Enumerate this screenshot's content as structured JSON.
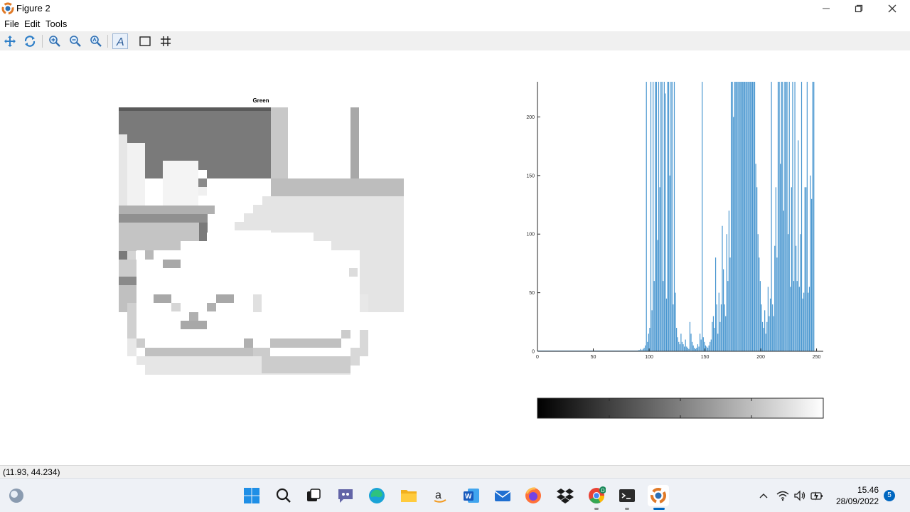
{
  "window": {
    "title": "Figure 2"
  },
  "menu": {
    "file": "File",
    "edit": "Edit",
    "tools": "Tools"
  },
  "toolbar_icons": [
    "pan-icon",
    "rotate-icon",
    "zoom-in-icon",
    "zoom-out-icon",
    "zoom-reset-icon",
    "text-icon",
    "axes-box-icon",
    "grid-icon"
  ],
  "image_panel": {
    "title": "Green"
  },
  "status": {
    "coordinates": "(11.93, 44.234)"
  },
  "clock": {
    "time": "15.46",
    "date": "28/09/2022"
  },
  "notifications": {
    "count": "5"
  },
  "taskbar_apps": [
    "start",
    "search",
    "task-view",
    "teams-chat",
    "edge",
    "file-explorer",
    "amazon",
    "word",
    "mail",
    "firefox",
    "dropbox",
    "chrome",
    "terminal",
    "octave"
  ],
  "colors": {
    "bar": "#4a97d0",
    "toolbar_bg": "#f0f0f0",
    "taskbar_bg": "#eef1f6",
    "accent": "#0067c0"
  },
  "chart_data": {
    "type": "bar",
    "title": "",
    "xlabel": "",
    "ylabel": "",
    "xlim": [
      0,
      256
    ],
    "ylim": [
      0,
      230
    ],
    "xticks": [
      "0",
      "50",
      "100",
      "150",
      "200",
      "250"
    ],
    "yticks": [
      "0",
      "50",
      "100",
      "150",
      "200"
    ],
    "series": [
      {
        "start_x": 90,
        "values": [
          1,
          1,
          2,
          1,
          2,
          3,
          5,
          230,
          8,
          15,
          20,
          230,
          35,
          230,
          60,
          230,
          230,
          95,
          230,
          140,
          230,
          230,
          60,
          230,
          220,
          45,
          230,
          230,
          150,
          230,
          230,
          40,
          230,
          50,
          20,
          12,
          8,
          6,
          15,
          8,
          6,
          4,
          10,
          4,
          3,
          2,
          25,
          15,
          8,
          5,
          3,
          2,
          3,
          6,
          4,
          15,
          10,
          230,
          12,
          8,
          5,
          4,
          3,
          5,
          8,
          10,
          25,
          30,
          20,
          80,
          40,
          15,
          50,
          25,
          40,
          107,
          70,
          40,
          30,
          100,
          60,
          120,
          80,
          230,
          230,
          200,
          230,
          230,
          230,
          230,
          230,
          230,
          230,
          230,
          230,
          230,
          230,
          230,
          230,
          230,
          230,
          230,
          230,
          230,
          230,
          160,
          140,
          100,
          80,
          60,
          40,
          25,
          20,
          35,
          15,
          25,
          55,
          30,
          45,
          230,
          40,
          30,
          90,
          140,
          80,
          230,
          230,
          160,
          230,
          230,
          120,
          230,
          230,
          230,
          100,
          230,
          55,
          140,
          230,
          60,
          230,
          90,
          60,
          180,
          55,
          100,
          230,
          45,
          50,
          140,
          140,
          230,
          50,
          55,
          150,
          130,
          230,
          230
        ],
        "max_shown": 230
      }
    ],
    "colorbar": {
      "from": "#000000",
      "to": "#ffffff",
      "ticks": 3
    }
  }
}
